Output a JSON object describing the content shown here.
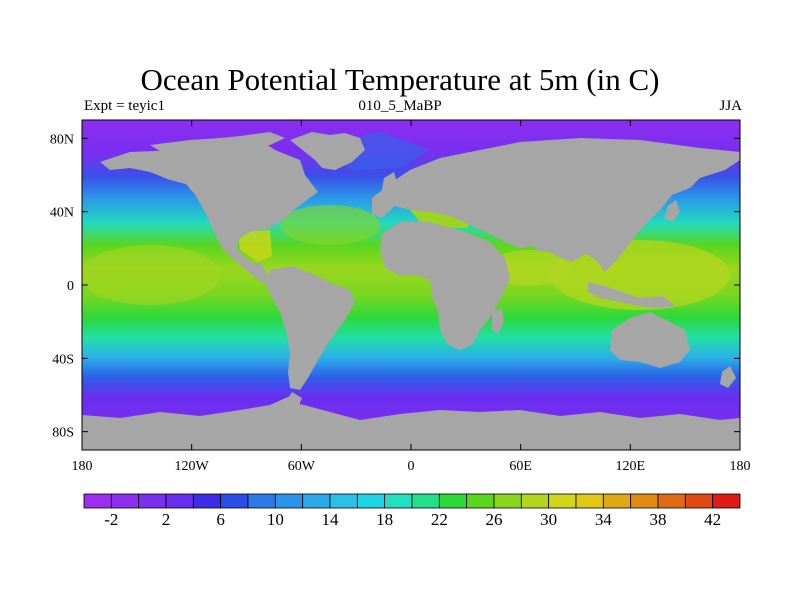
{
  "title": "Ocean Potential Temperature at 5m (in C)",
  "subtitle_left": "Expt = teyic1",
  "subtitle_center": "010_5_MaBP",
  "subtitle_right": "JJA",
  "map": {
    "lon_range": [
      -180,
      180
    ],
    "lat_range": [
      -90,
      90
    ],
    "x_ticks": [
      {
        "value": -180,
        "label": "180"
      },
      {
        "value": -120,
        "label": "120W"
      },
      {
        "value": -60,
        "label": "60W"
      },
      {
        "value": 0,
        "label": "0"
      },
      {
        "value": 60,
        "label": "60E"
      },
      {
        "value": 120,
        "label": "120E"
      },
      {
        "value": 180,
        "label": "180"
      }
    ],
    "y_ticks": [
      {
        "value": 80,
        "label": "80N"
      },
      {
        "value": 40,
        "label": "40N"
      },
      {
        "value": 0,
        "label": "0"
      },
      {
        "value": -40,
        "label": "40S"
      },
      {
        "value": -80,
        "label": "80S"
      }
    ],
    "land_color": "#a6a6a6"
  },
  "colorbar": {
    "levels": [
      -4,
      -2,
      0,
      2,
      4,
      6,
      8,
      10,
      12,
      14,
      16,
      18,
      20,
      22,
      24,
      26,
      28,
      30,
      32,
      34,
      36,
      38,
      40,
      42,
      44
    ],
    "colors": [
      "#9b2ff0",
      "#8a2ef0",
      "#7a2ef0",
      "#6a2ef0",
      "#3a2ee8",
      "#2b4ee8",
      "#2b7ae8",
      "#2b93e8",
      "#2ba8e8",
      "#2bc0e8",
      "#1fd4e0",
      "#22e0c0",
      "#22e08a",
      "#2bd93b",
      "#5ad61f",
      "#8ad61f",
      "#b4d61f",
      "#d0d61a",
      "#e0c814",
      "#e0a814",
      "#e08a14",
      "#e06a14",
      "#e04a14",
      "#e01a14"
    ],
    "labels": [
      {
        "value": -2,
        "label": "-2"
      },
      {
        "value": 2,
        "label": "2"
      },
      {
        "value": 6,
        "label": "6"
      },
      {
        "value": 10,
        "label": "10"
      },
      {
        "value": 14,
        "label": "14"
      },
      {
        "value": 18,
        "label": "18"
      },
      {
        "value": 22,
        "label": "22"
      },
      {
        "value": 26,
        "label": "26"
      },
      {
        "value": 30,
        "label": "30"
      },
      {
        "value": 34,
        "label": "34"
      },
      {
        "value": 38,
        "label": "38"
      },
      {
        "value": 42,
        "label": "42"
      }
    ]
  }
}
